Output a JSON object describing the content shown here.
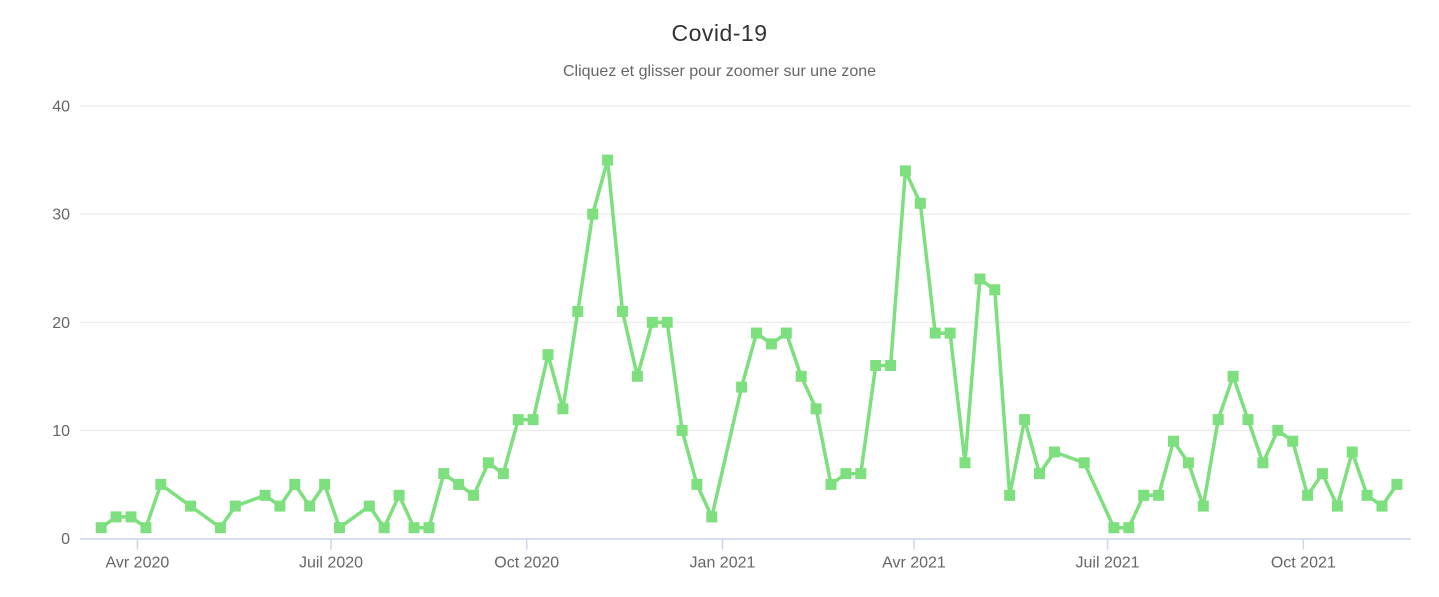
{
  "chart_data": {
    "type": "line",
    "title": "Covid-19",
    "subtitle": "Cliquez et glisser pour zoomer sur une zone",
    "grid": true,
    "legend": false,
    "marker": "square",
    "line_color": "#7ddf7d",
    "grid_color": "#e6e6e6",
    "axis_color": "#ccd6eb",
    "label_color": "#666666",
    "title_color": "#333333",
    "subtitle_color": "#666666",
    "ylim": [
      0,
      40
    ],
    "yticks": [
      0,
      10,
      20,
      30,
      40
    ],
    "xticks": [
      {
        "date": "2020-04-01",
        "label": "Avr 2020"
      },
      {
        "date": "2020-07-01",
        "label": "Juil 2020"
      },
      {
        "date": "2020-10-01",
        "label": "Oct 2020"
      },
      {
        "date": "2021-01-01",
        "label": "Jan 2021"
      },
      {
        "date": "2021-04-01",
        "label": "Avr 2021"
      },
      {
        "date": "2021-07-01",
        "label": "Juil 2021"
      },
      {
        "date": "2021-10-01",
        "label": "Oct 2021"
      }
    ],
    "x": [
      "2020-03-15",
      "2020-03-22",
      "2020-03-29",
      "2020-04-05",
      "2020-04-12",
      "2020-04-26",
      "2020-05-10",
      "2020-05-17",
      "2020-05-31",
      "2020-06-07",
      "2020-06-14",
      "2020-06-21",
      "2020-06-28",
      "2020-07-05",
      "2020-07-19",
      "2020-07-26",
      "2020-08-02",
      "2020-08-09",
      "2020-08-16",
      "2020-08-23",
      "2020-08-30",
      "2020-09-06",
      "2020-09-13",
      "2020-09-20",
      "2020-09-27",
      "2020-10-04",
      "2020-10-11",
      "2020-10-18",
      "2020-10-25",
      "2020-11-01",
      "2020-11-08",
      "2020-11-15",
      "2020-11-22",
      "2020-11-29",
      "2020-12-06",
      "2020-12-13",
      "2020-12-20",
      "2020-12-27",
      "2021-01-10",
      "2021-01-17",
      "2021-01-24",
      "2021-01-31",
      "2021-02-07",
      "2021-02-14",
      "2021-02-21",
      "2021-02-28",
      "2021-03-07",
      "2021-03-14",
      "2021-03-21",
      "2021-03-28",
      "2021-04-04",
      "2021-04-11",
      "2021-04-18",
      "2021-04-25",
      "2021-05-02",
      "2021-05-09",
      "2021-05-16",
      "2021-05-23",
      "2021-05-30",
      "2021-06-06",
      "2021-06-20",
      "2021-07-04",
      "2021-07-11",
      "2021-07-18",
      "2021-07-25",
      "2021-08-01",
      "2021-08-08",
      "2021-08-15",
      "2021-08-22",
      "2021-08-29",
      "2021-09-05",
      "2021-09-12",
      "2021-09-19",
      "2021-09-26",
      "2021-10-03",
      "2021-10-10",
      "2021-10-17",
      "2021-10-24",
      "2021-10-31",
      "2021-11-07",
      "2021-11-14"
    ],
    "values": [
      1,
      2,
      2,
      1,
      5,
      3,
      1,
      3,
      4,
      3,
      5,
      3,
      5,
      1,
      3,
      1,
      4,
      1,
      1,
      6,
      5,
      4,
      7,
      6,
      11,
      11,
      17,
      12,
      21,
      30,
      35,
      21,
      15,
      20,
      20,
      10,
      5,
      2,
      14,
      19,
      18,
      19,
      15,
      12,
      5,
      6,
      6,
      16,
      16,
      34,
      31,
      19,
      19,
      7,
      24,
      23,
      4,
      11,
      6,
      8,
      7,
      1,
      1,
      4,
      4,
      9,
      7,
      3,
      11,
      15,
      11,
      7,
      10,
      9,
      4,
      6,
      3,
      8,
      4,
      3,
      5
    ]
  }
}
